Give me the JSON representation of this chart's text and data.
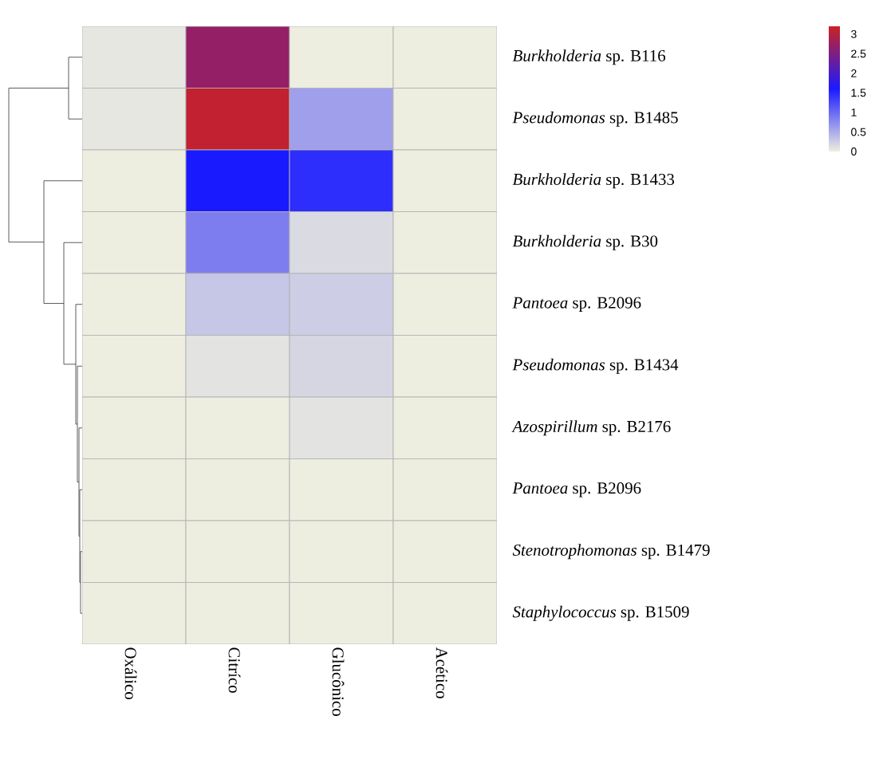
{
  "chart_data": {
    "type": "heatmap",
    "categories": [
      "Oxálico",
      "Citríco",
      "Glucônico",
      "Acético"
    ],
    "y_categories": [
      "*Burkholderia* sp. B116",
      "*Pseudomonas* sp. B1485",
      "*Burkholderia* sp. B1433",
      "*Burkholderia* sp. B30",
      "*Pantoea* sp. B2096",
      "*Pseudomonas* sp. B1434",
      "*Azospirillum* sp. B2176",
      "*Pantoea* sp. B2096",
      "*Stenotrophomonas* sp. B1479",
      "*Staphylococcus* sp. B1509"
    ],
    "cells": [
      [
        0.05,
        2.7,
        0,
        0
      ],
      [
        0.05,
        3.1,
        0.6,
        0
      ],
      [
        0,
        1.6,
        1.45,
        0
      ],
      [
        0,
        0.85,
        0.15,
        0
      ],
      [
        0,
        0.3,
        0.25,
        0
      ],
      [
        0,
        0.08,
        0.18,
        0
      ],
      [
        0,
        0,
        0.08,
        0
      ],
      [
        0,
        0,
        0,
        0
      ],
      [
        0,
        0,
        0,
        0
      ],
      [
        0,
        0,
        0,
        0
      ]
    ],
    "clim": [
      0,
      3.2
    ],
    "cticks": [
      0,
      0.5,
      1,
      1.5,
      2,
      2.5,
      3
    ]
  }
}
